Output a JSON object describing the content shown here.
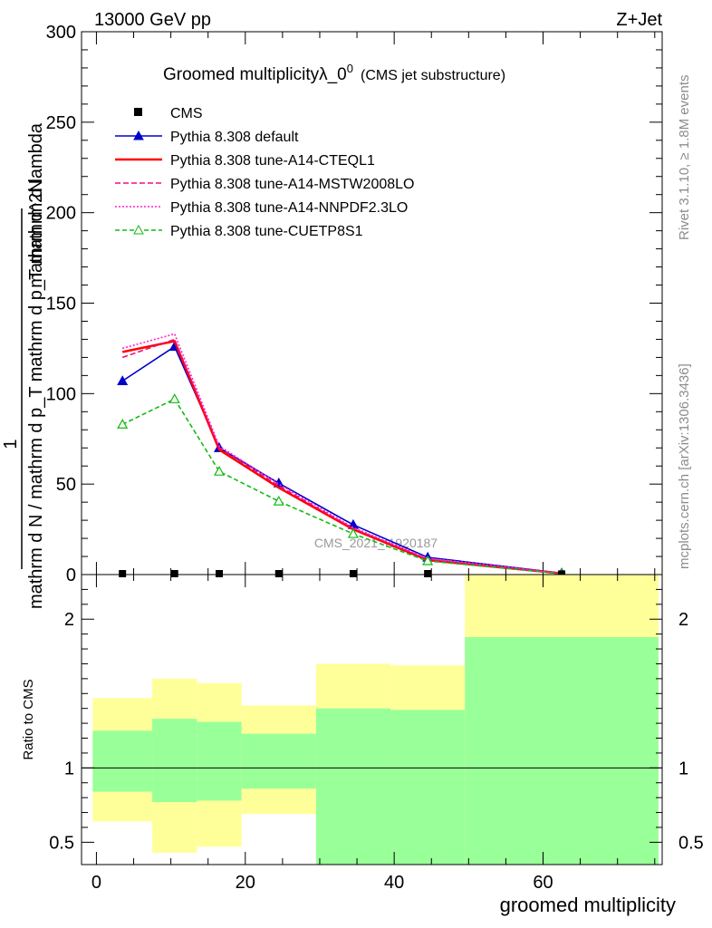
{
  "header": {
    "left": "13000 GeV pp",
    "right": "Z+Jet"
  },
  "side_labels": {
    "rivet": "Rivet 3.1.10, ≥ 1.8M events",
    "mcplots": "mcplots.cern.ch [arXiv:1306.3436]"
  },
  "chart_data": [
    {
      "type": "line",
      "title_main": "Groomed multiplicityλ_0",
      "title_sup": "0",
      "title_sub": "(CMS jet substructure)",
      "ylabel_numerator": "1",
      "ylabel_denominator": "mathrm d N / mathrm d p_T mathrm d p_T mathrm d lambda",
      "ylabel_top": "mathrm d^2N",
      "ylim": [
        0,
        300
      ],
      "xlim": [
        -2,
        76
      ],
      "yticks": [
        0,
        50,
        100,
        150,
        200,
        250,
        300
      ],
      "ytick_labels": [
        "0",
        "50",
        "100",
        "150",
        "200",
        "250",
        "300"
      ],
      "watermark": "CMS_2021_I1920187",
      "legend_position": "top-left",
      "data": {
        "name": "CMS",
        "x": [
          3.5,
          10.5,
          16.5,
          24.5,
          34.5,
          44.5,
          62.5
        ],
        "y": [
          0.5,
          0.5,
          0.5,
          0.5,
          0.5,
          0.5,
          0.3
        ]
      },
      "series": [
        {
          "name": "Pythia 8.308 default",
          "color": "#0000cc",
          "style": "solid-triangle",
          "x": [
            3.5,
            10.5,
            16.5,
            24.5,
            34.5,
            44.5,
            62.5
          ],
          "y": [
            107,
            126,
            70,
            50.5,
            27.5,
            9.5,
            0.8
          ]
        },
        {
          "name": "Pythia 8.308 tune-A14-CTEQL1",
          "color": "#ff0000",
          "style": "solid-thick",
          "x": [
            3.5,
            10.5,
            16.5,
            24.5,
            34.5,
            44.5,
            62.5
          ],
          "y": [
            123,
            129,
            69,
            48,
            25,
            8,
            0.6
          ]
        },
        {
          "name": "Pythia 8.308 tune-A14-MSTW2008LO",
          "color": "#ee1177",
          "style": "dashed",
          "x": [
            3.5,
            10.5,
            16.5,
            24.5,
            34.5,
            44.5,
            62.5
          ],
          "y": [
            120,
            130,
            70,
            49,
            25.5,
            8.5,
            0.6
          ]
        },
        {
          "name": "Pythia 8.308 tune-A14-NNPDF2.3LO",
          "color": "#ff22cc",
          "style": "dotted",
          "x": [
            3.5,
            10.5,
            16.5,
            24.5,
            34.5,
            44.5,
            62.5
          ],
          "y": [
            125,
            133,
            71,
            50,
            26,
            9,
            0.7
          ]
        },
        {
          "name": "Pythia 8.308 tune-CUETP8S1",
          "color": "#11bb11",
          "style": "dashed-open-triangle",
          "x": [
            3.5,
            10.5,
            16.5,
            24.5,
            34.5,
            44.5,
            62.5
          ],
          "y": [
            83,
            97,
            57,
            40.5,
            22.5,
            7.5,
            0.5
          ]
        }
      ]
    },
    {
      "type": "area",
      "ylabel": "Ratio to CMS",
      "xlabel": "groomed multiplicity",
      "ylim": [
        0.35,
        2.3
      ],
      "xlim": [
        -2,
        76
      ],
      "xticks": [
        0,
        20,
        40,
        60
      ],
      "xtick_labels": [
        "0",
        "20",
        "40",
        "60"
      ],
      "yticks": [
        0.5,
        1,
        2
      ],
      "ytick_labels": [
        "0.5",
        "1",
        "2"
      ],
      "reference_line": 1,
      "bins": [
        {
          "x0": -0.5,
          "x1": 7.5,
          "stat_lo": 0.84,
          "stat_hi": 1.25,
          "tot_lo": 0.64,
          "tot_hi": 1.47
        },
        {
          "x0": 7.5,
          "x1": 13.5,
          "stat_lo": 0.77,
          "stat_hi": 1.33,
          "tot_lo": 0.43,
          "tot_hi": 1.6
        },
        {
          "x0": 13.5,
          "x1": 19.5,
          "stat_lo": 0.78,
          "stat_hi": 1.31,
          "tot_lo": 0.47,
          "tot_hi": 1.57
        },
        {
          "x0": 19.5,
          "x1": 29.5,
          "stat_lo": 0.86,
          "stat_hi": 1.23,
          "tot_lo": 0.69,
          "tot_hi": 1.42
        },
        {
          "x0": 29.5,
          "x1": 39.5,
          "stat_lo": 0.35,
          "stat_hi": 1.4,
          "tot_lo": 0.35,
          "tot_hi": 1.7
        },
        {
          "x0": 39.5,
          "x1": 49.5,
          "stat_lo": 0.35,
          "stat_hi": 1.39,
          "tot_lo": 0.35,
          "tot_hi": 1.69
        },
        {
          "x0": 49.5,
          "x1": 75.5,
          "stat_lo": 0.35,
          "stat_hi": 1.88,
          "tot_lo": 0.35,
          "tot_hi": 2.3
        }
      ],
      "colors": {
        "stat": "#99ff99",
        "total": "#ffff99"
      }
    }
  ]
}
